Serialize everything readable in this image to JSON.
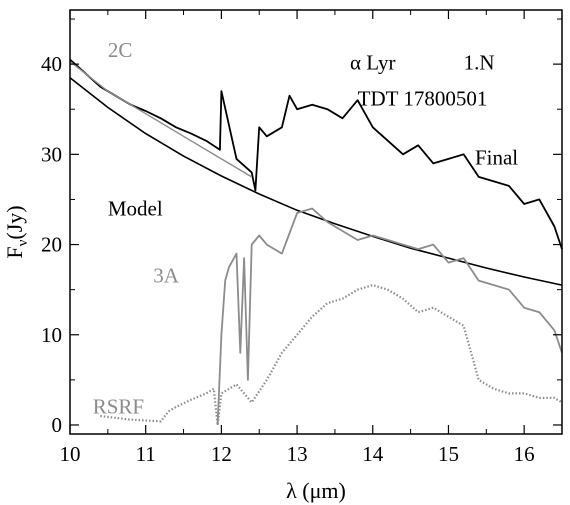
{
  "chart_data": {
    "type": "line",
    "title": "",
    "xlabel": "λ (μm)",
    "ylabel": "Fν(Jy)",
    "xlim": [
      10,
      16.5
    ],
    "ylim": [
      -1,
      46
    ],
    "x_ticks": [
      "10",
      "11",
      "12",
      "13",
      "14",
      "15",
      "16"
    ],
    "y_ticks": [
      "0",
      "10",
      "20",
      "30",
      "40"
    ],
    "grid": false,
    "legend": "none",
    "annotations": {
      "target": "α Lyr",
      "segment": "1.N",
      "tdt": "TDT 17800501",
      "label_2c": "2C",
      "label_final": "Final",
      "label_model": "Model",
      "label_3a": "3A",
      "label_rsrf": "RSRF"
    },
    "colors": {
      "final": "#000000",
      "model": "#000000",
      "band_3a": "#8c8c8c",
      "band_2c": "#8c8c8c",
      "rsrf": "#8c8c8c"
    },
    "series": [
      {
        "name": "Final",
        "style": "solid",
        "x": [
          10.0,
          10.2,
          10.4,
          10.6,
          10.8,
          11.0,
          11.2,
          11.4,
          11.6,
          11.8,
          11.98,
          12.0,
          12.2,
          12.4,
          12.45,
          12.5,
          12.6,
          12.8,
          12.9,
          13.0,
          13.2,
          13.4,
          13.6,
          13.8,
          14.0,
          14.2,
          14.4,
          14.6,
          14.8,
          15.0,
          15.2,
          15.4,
          15.6,
          15.8,
          16.0,
          16.2,
          16.4,
          16.5
        ],
        "y": [
          40.5,
          39.0,
          37.5,
          36.5,
          35.5,
          34.8,
          34.0,
          33.0,
          32.3,
          31.5,
          30.5,
          37.0,
          29.5,
          28.0,
          26.0,
          33.0,
          32.0,
          33.0,
          36.5,
          35.0,
          35.5,
          35.0,
          34.0,
          36.0,
          33.0,
          31.5,
          30.0,
          31.0,
          29.0,
          29.5,
          30.0,
          27.5,
          27.0,
          26.5,
          24.5,
          25.0,
          22.0,
          19.5
        ]
      },
      {
        "name": "Model",
        "style": "solid",
        "x": [
          10.0,
          10.5,
          11.0,
          11.5,
          12.0,
          12.5,
          13.0,
          13.5,
          14.0,
          14.5,
          15.0,
          15.5,
          16.0,
          16.5
        ],
        "y": [
          38.5,
          35.2,
          32.3,
          29.8,
          27.6,
          25.6,
          23.8,
          22.3,
          20.9,
          19.6,
          18.5,
          17.4,
          16.4,
          15.5
        ]
      },
      {
        "name": "3A",
        "style": "solid",
        "x": [
          11.95,
          12.0,
          12.05,
          12.1,
          12.2,
          12.25,
          12.3,
          12.35,
          12.4,
          12.5,
          12.6,
          12.8,
          13.0,
          13.2,
          13.4,
          13.6,
          13.8,
          14.0,
          14.2,
          14.4,
          14.6,
          14.8,
          15.0,
          15.2,
          15.4,
          15.6,
          15.8,
          16.0,
          16.2,
          16.4,
          16.5
        ],
        "y": [
          0.0,
          10.0,
          16.0,
          17.5,
          19.0,
          8.0,
          18.5,
          5.0,
          20.0,
          21.0,
          20.0,
          19.0,
          23.5,
          24.0,
          22.5,
          21.5,
          20.5,
          21.0,
          20.5,
          20.0,
          19.5,
          20.0,
          18.0,
          18.5,
          16.0,
          15.5,
          15.0,
          13.0,
          12.5,
          10.5,
          8.0
        ]
      },
      {
        "name": "RSRF",
        "style": "dotted",
        "x": [
          10.4,
          10.6,
          10.8,
          11.0,
          11.2,
          11.3,
          11.4,
          11.6,
          11.8,
          11.9,
          11.95,
          12.0,
          12.2,
          12.4,
          12.6,
          12.8,
          13.0,
          13.2,
          13.4,
          13.6,
          13.8,
          14.0,
          14.2,
          14.4,
          14.6,
          14.8,
          15.0,
          15.2,
          15.4,
          15.6,
          15.8,
          16.0,
          16.2,
          16.4,
          16.5
        ],
        "y": [
          1.0,
          0.8,
          0.6,
          0.5,
          0.4,
          1.5,
          2.0,
          2.8,
          3.5,
          4.0,
          0.0,
          3.5,
          4.5,
          2.5,
          5.0,
          8.0,
          10.0,
          12.0,
          13.5,
          14.0,
          15.0,
          15.5,
          15.0,
          14.0,
          12.5,
          13.0,
          12.0,
          11.0,
          5.0,
          4.0,
          3.5,
          3.5,
          3.0,
          3.0,
          2.5
        ]
      },
      {
        "name": "2C",
        "style": "solid",
        "x": [
          10.0,
          10.5,
          11.0,
          11.5,
          12.0,
          12.4
        ],
        "y": [
          40.3,
          37.0,
          34.5,
          32.0,
          29.5,
          27.5
        ]
      }
    ]
  }
}
